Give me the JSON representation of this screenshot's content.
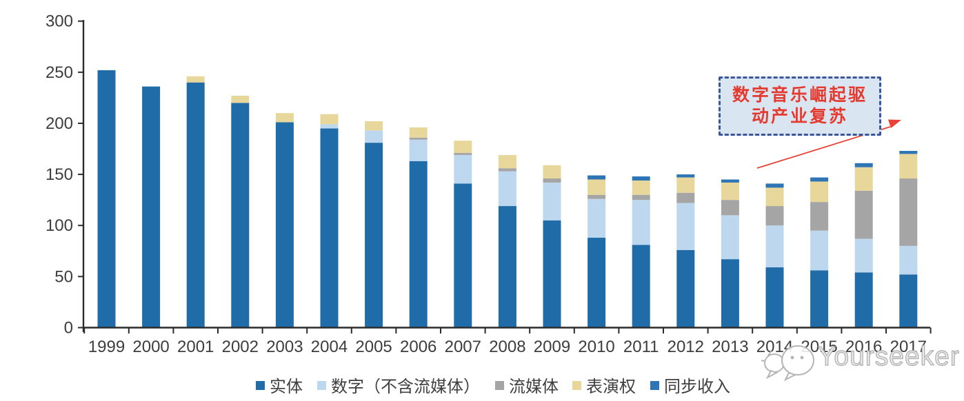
{
  "chart_data": {
    "type": "bar",
    "stacked": true,
    "title": "",
    "categories": [
      "1999",
      "2000",
      "2001",
      "2002",
      "2003",
      "2004",
      "2005",
      "2006",
      "2007",
      "2008",
      "2009",
      "2010",
      "2011",
      "2012",
      "2013",
      "2014",
      "2015",
      "2016",
      "2017"
    ],
    "series": [
      {
        "name": "实体",
        "color": "#1f6ca8",
        "values": [
          252,
          236,
          240,
          220,
          201,
          195,
          181,
          163,
          141,
          119,
          105,
          88,
          81,
          76,
          67,
          59,
          56,
          54,
          52
        ]
      },
      {
        "name": "数字（不含流媒体）",
        "color": "#bdd7ee",
        "values": [
          0,
          0,
          0,
          0,
          0,
          4,
          12,
          21,
          28,
          34,
          37,
          38,
          44,
          46,
          43,
          41,
          39,
          33,
          28
        ]
      },
      {
        "name": "流媒体",
        "color": "#a5a5a5",
        "values": [
          0,
          0,
          0,
          0,
          0,
          0,
          0,
          2,
          2,
          3,
          4,
          4,
          5,
          10,
          15,
          19,
          28,
          47,
          66
        ]
      },
      {
        "name": "表演权",
        "color": "#e8d79a",
        "values": [
          0,
          0,
          6,
          7,
          9,
          10,
          9,
          10,
          12,
          13,
          13,
          15,
          14,
          15,
          17,
          18,
          20,
          23,
          24
        ]
      },
      {
        "name": "同步收入",
        "color": "#2e75b6",
        "values": [
          0,
          0,
          0,
          0,
          0,
          0,
          0,
          0,
          0,
          0,
          0,
          4,
          4,
          3,
          3,
          4,
          4,
          4,
          3
        ]
      }
    ],
    "xlabel": "",
    "ylabel": "",
    "ylim": [
      0,
      300
    ],
    "ytick_interval": 50,
    "grid": false,
    "legend_position": "bottom",
    "axis_color": "#2b2b2b",
    "tick_label_color": "#3d3d3d"
  },
  "annotation": {
    "line1": "数字音乐崛起驱",
    "line2": "动产业复苏",
    "text_color": "#e53a30",
    "border_color": "#3a5699",
    "fill_color": "#d9e5f1",
    "arrow_color": "#e84136"
  },
  "watermark": {
    "text": "Yourseeker",
    "color": "#b5b5b5"
  }
}
